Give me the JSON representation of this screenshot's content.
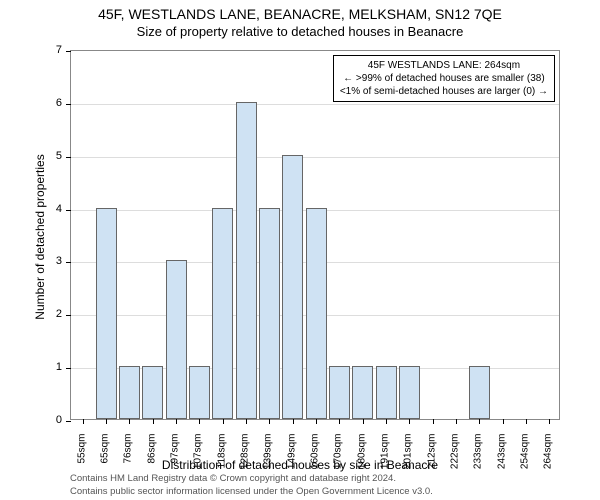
{
  "title": "45F, WESTLANDS LANE, BEANACRE, MELKSHAM, SN12 7QE",
  "subtitle": "Size of property relative to detached houses in Beanacre",
  "y_axis_label": "Number of detached properties",
  "x_axis_label": "Distribution of detached houses by size in Beanacre",
  "chart": {
    "type": "bar",
    "bar_fill": "#cfe2f3",
    "bar_border": "#666666",
    "grid_color": "#dddddd",
    "axis_color": "#888888",
    "background": "#ffffff",
    "ylim": [
      0,
      7
    ],
    "yticks": [
      0,
      1,
      2,
      3,
      4,
      5,
      6,
      7
    ],
    "categories": [
      "55sqm",
      "65sqm",
      "76sqm",
      "86sqm",
      "97sqm",
      "107sqm",
      "118sqm",
      "128sqm",
      "139sqm",
      "149sqm",
      "160sqm",
      "170sqm",
      "180sqm",
      "191sqm",
      "201sqm",
      "212sqm",
      "222sqm",
      "233sqm",
      "243sqm",
      "254sqm",
      "264sqm"
    ],
    "values": [
      0,
      4,
      1,
      1,
      3,
      1,
      4,
      6,
      4,
      5,
      4,
      1,
      1,
      1,
      1,
      0,
      0,
      1,
      0,
      0,
      0
    ],
    "title_fontsize": 14,
    "subtitle_fontsize": 13,
    "axis_label_fontsize": 12,
    "tick_fontsize": 11
  },
  "info_box": {
    "line1": "45F WESTLANDS LANE: 264sqm",
    "line2": "← >99% of detached houses are smaller (38)",
    "line3": "<1% of semi-detached houses are larger (0) →"
  },
  "footer": {
    "line1": "Contains HM Land Registry data © Crown copyright and database right 2024.",
    "line2": "Contains public sector information licensed under the Open Government Licence v3.0."
  }
}
